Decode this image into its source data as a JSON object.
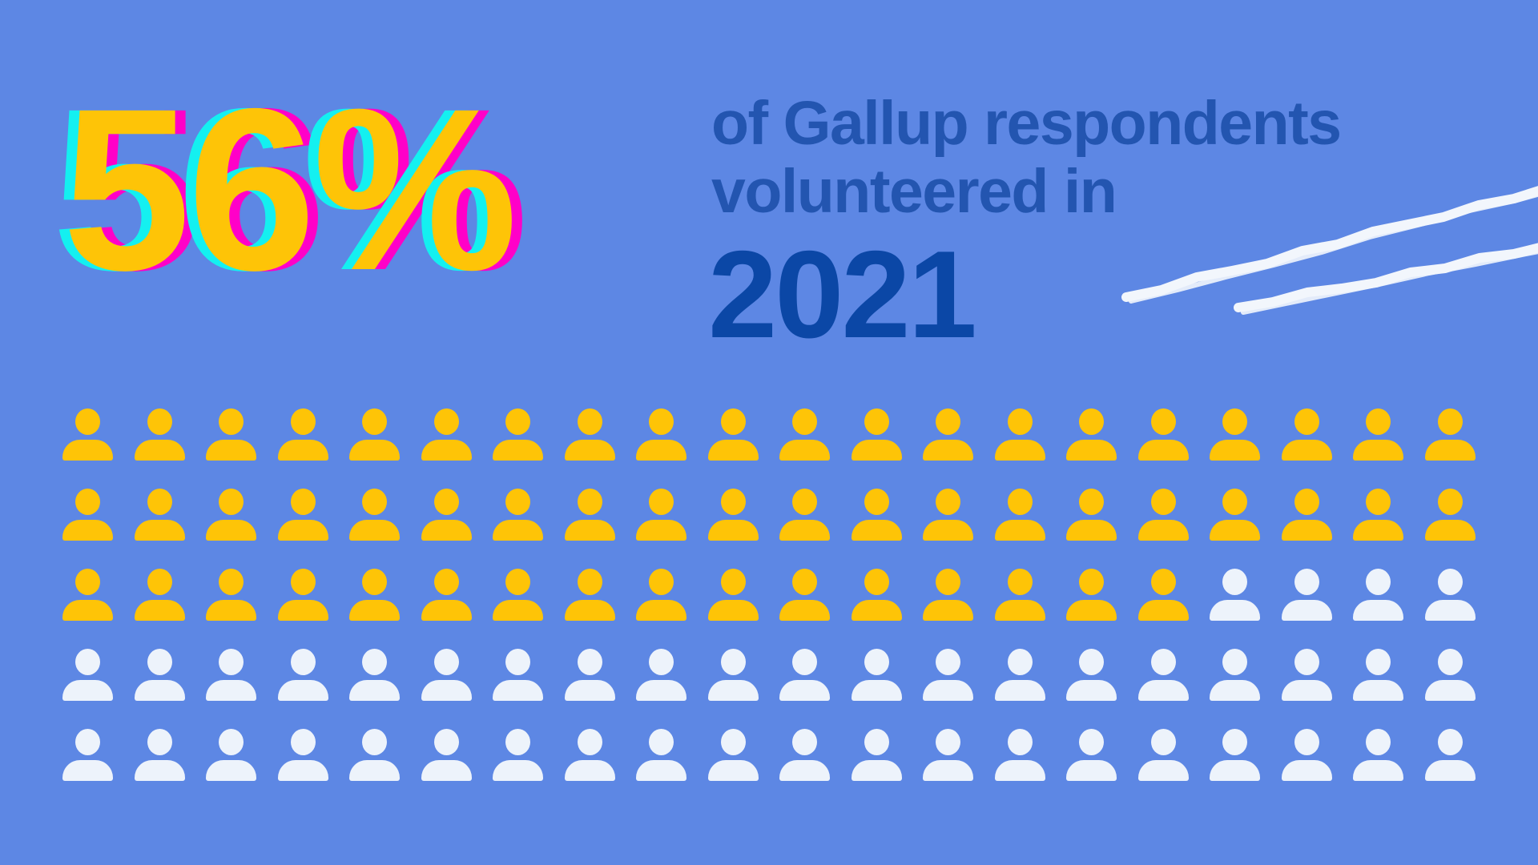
{
  "title": "56% of Gallup respondents volunteered in 2021",
  "stat": {
    "value": "56%"
  },
  "headline": {
    "line1": "of Gallup respondents",
    "line2": "volunteered in",
    "year": "2021"
  },
  "colors": {
    "bg": "#5D87E4",
    "stat": "#FEC407",
    "cyan": "#14F0F0",
    "magenta": "#FF00C8",
    "headline": "#2355B0",
    "year": "#0B47A6",
    "chalk": "#F2F6FC",
    "filled": "#FEC407",
    "unfilled": "#EDF3FB"
  },
  "chart_data": {
    "type": "pictogram",
    "title": "56% of Gallup respondents volunteered in 2021",
    "icon": "person",
    "unit_per_icon_percent": 1,
    "total_icons": 100,
    "filled_icons": 56,
    "unfilled_icons": 44,
    "filled_percent": 56,
    "grid": {
      "rows": 5,
      "columns": 20
    },
    "filled_per_row": [
      20,
      20,
      16,
      0,
      0
    ],
    "filled_color": "#FEC407",
    "unfilled_color": "#EDF3FB",
    "legend_position": "none",
    "annotations": [
      "two white chalk strokes, top right"
    ]
  }
}
